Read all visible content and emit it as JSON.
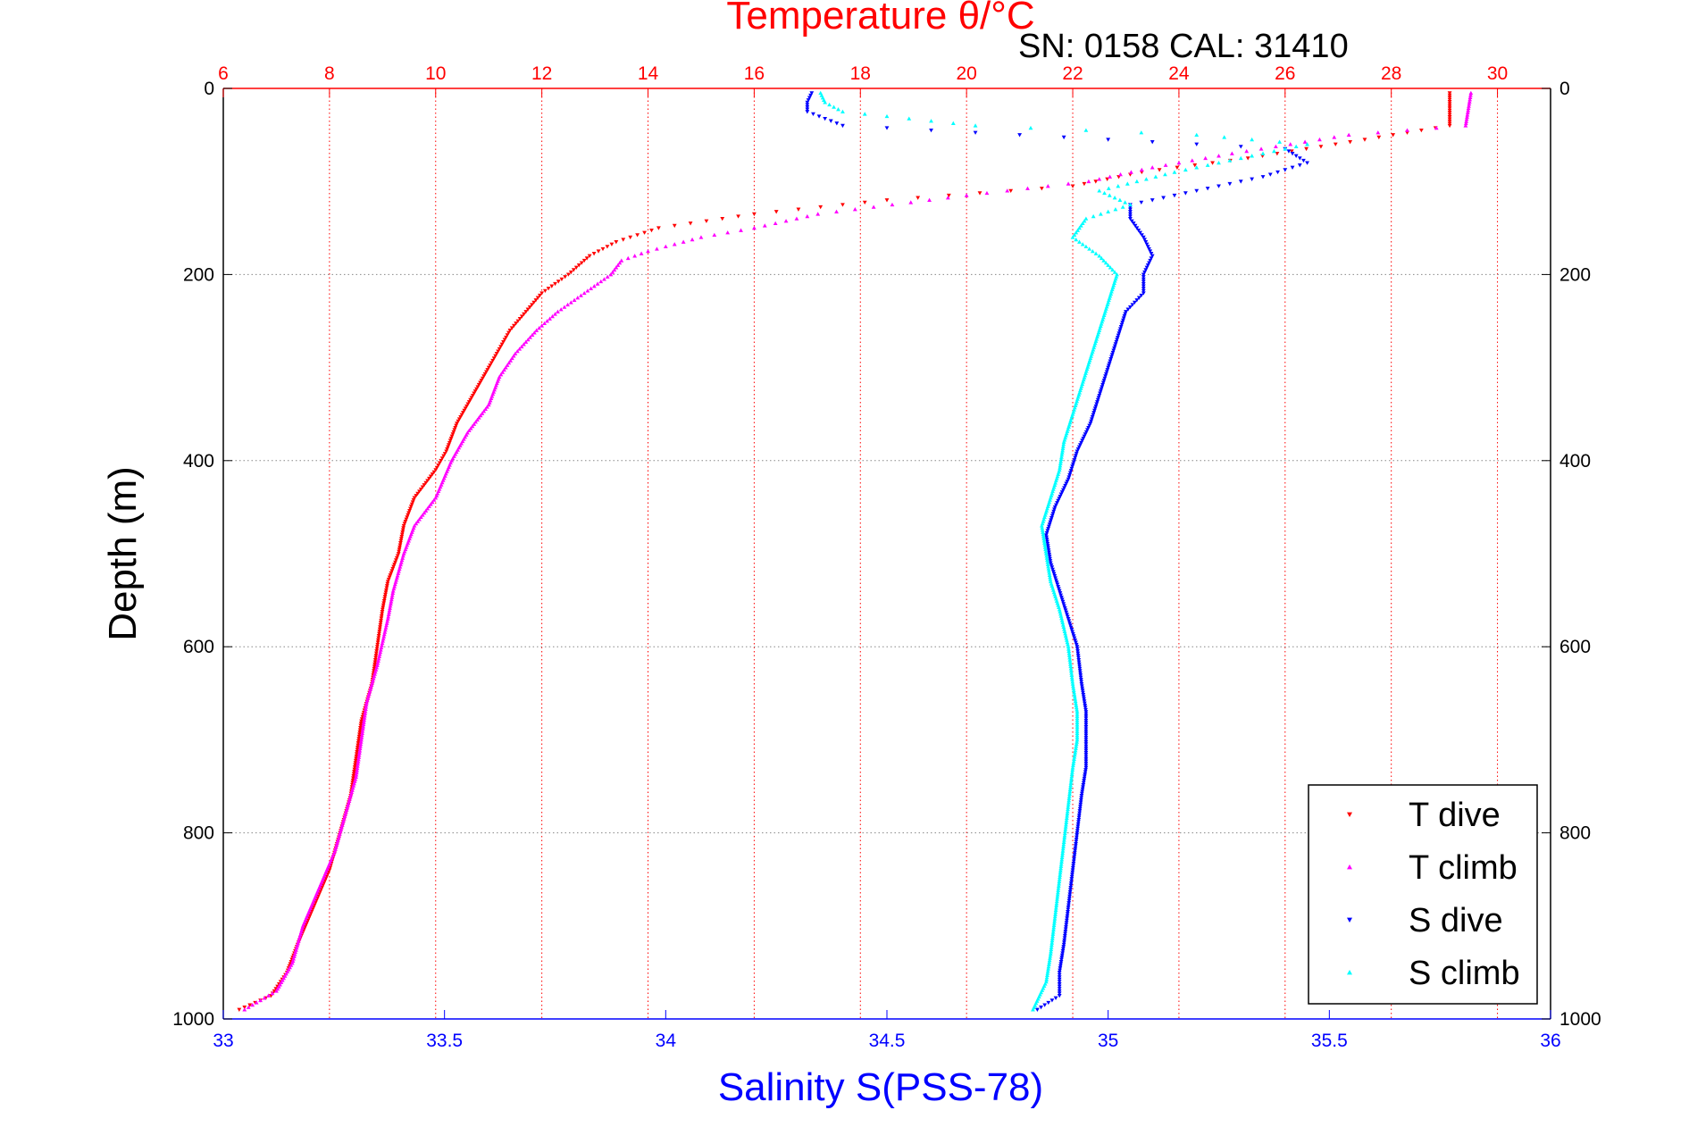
{
  "chart_data": {
    "type": "scatter",
    "title": "Temperature θ/°C",
    "annotation": "SN: 0158  CAL: 31410",
    "xlabel_top": "Temperature θ/°C",
    "xlabel": "Salinity S(PSS-78)",
    "ylabel": "Depth (m)",
    "x_top_range": [
      6,
      31
    ],
    "x_top_ticks": [
      "6",
      "8",
      "10",
      "12",
      "14",
      "16",
      "18",
      "20",
      "22",
      "24",
      "26",
      "28",
      "30"
    ],
    "x_bottom_range": [
      33,
      36
    ],
    "x_bottom_ticks": [
      "33",
      "33.5",
      "34",
      "34.5",
      "35",
      "35.5",
      "36"
    ],
    "y_range": [
      0,
      1000
    ],
    "y_reversed": true,
    "y_ticks": [
      "0",
      "200",
      "400",
      "600",
      "800",
      "1000"
    ],
    "grid": "top-axis vertical (red dotted) and depth horizontal (gray dotted)",
    "legend_position": "bottom-right",
    "colors": {
      "t_dive": "#ff0000",
      "t_climb": "#ff00ff",
      "s_dive": "#0000ff",
      "s_climb": "#00ffff",
      "temperature_axis": "#ff0000",
      "salinity_axis": "#0000ff",
      "depth_grid": "#888888"
    },
    "series": [
      {
        "name": "T dive",
        "axis": "temperature",
        "marker": "down-triangle",
        "points": [
          [
            29.1,
            5
          ],
          [
            29.1,
            40
          ],
          [
            27.5,
            55
          ],
          [
            25.3,
            75
          ],
          [
            23.3,
            90
          ],
          [
            22.0,
            105
          ],
          [
            18.5,
            120
          ],
          [
            16.0,
            135
          ],
          [
            14.2,
            150
          ],
          [
            13.4,
            165
          ],
          [
            12.9,
            180
          ],
          [
            12.5,
            200
          ],
          [
            12.0,
            220
          ],
          [
            11.7,
            240
          ],
          [
            11.4,
            260
          ],
          [
            11.2,
            280
          ],
          [
            11.0,
            300
          ],
          [
            10.7,
            330
          ],
          [
            10.4,
            360
          ],
          [
            10.2,
            390
          ],
          [
            10.0,
            410
          ],
          [
            9.6,
            440
          ],
          [
            9.4,
            470
          ],
          [
            9.3,
            500
          ],
          [
            9.1,
            530
          ],
          [
            9.0,
            560
          ],
          [
            8.9,
            600
          ],
          [
            8.8,
            640
          ],
          [
            8.6,
            680
          ],
          [
            8.5,
            720
          ],
          [
            8.4,
            760
          ],
          [
            8.2,
            800
          ],
          [
            8.0,
            840
          ],
          [
            7.7,
            880
          ],
          [
            7.4,
            920
          ],
          [
            7.2,
            950
          ],
          [
            6.9,
            975
          ],
          [
            6.3,
            990
          ]
        ]
      },
      {
        "name": "T climb",
        "axis": "temperature",
        "marker": "up-triangle",
        "points": [
          [
            29.5,
            5
          ],
          [
            29.4,
            40
          ],
          [
            27.2,
            50
          ],
          [
            25.0,
            70
          ],
          [
            23.5,
            85
          ],
          [
            22.3,
            100
          ],
          [
            20.0,
            115
          ],
          [
            17.2,
            135
          ],
          [
            16.0,
            150
          ],
          [
            15.0,
            160
          ],
          [
            14.0,
            175
          ],
          [
            13.5,
            185
          ],
          [
            13.3,
            200
          ],
          [
            12.8,
            220
          ],
          [
            12.3,
            240
          ],
          [
            11.9,
            260
          ],
          [
            11.5,
            285
          ],
          [
            11.2,
            310
          ],
          [
            11.0,
            340
          ],
          [
            10.6,
            370
          ],
          [
            10.3,
            400
          ],
          [
            10.0,
            440
          ],
          [
            9.6,
            470
          ],
          [
            9.4,
            500
          ],
          [
            9.2,
            540
          ],
          [
            9.1,
            570
          ],
          [
            8.9,
            620
          ],
          [
            8.7,
            660
          ],
          [
            8.6,
            700
          ],
          [
            8.5,
            740
          ],
          [
            8.3,
            780
          ],
          [
            8.1,
            820
          ],
          [
            7.8,
            860
          ],
          [
            7.5,
            900
          ],
          [
            7.3,
            940
          ],
          [
            7.0,
            970
          ],
          [
            6.4,
            990
          ]
        ]
      },
      {
        "name": "S dive",
        "axis": "salinity",
        "marker": "down-triangle",
        "points": [
          [
            34.33,
            5
          ],
          [
            34.32,
            15
          ],
          [
            34.32,
            25
          ],
          [
            34.4,
            40
          ],
          [
            35.0,
            55
          ],
          [
            35.4,
            65
          ],
          [
            35.45,
            80
          ],
          [
            35.35,
            95
          ],
          [
            35.2,
            110
          ],
          [
            35.05,
            125
          ],
          [
            35.05,
            140
          ],
          [
            35.08,
            160
          ],
          [
            35.1,
            180
          ],
          [
            35.08,
            200
          ],
          [
            35.08,
            220
          ],
          [
            35.04,
            240
          ],
          [
            35.02,
            270
          ],
          [
            35.0,
            300
          ],
          [
            34.98,
            330
          ],
          [
            34.96,
            360
          ],
          [
            34.93,
            390
          ],
          [
            34.91,
            420
          ],
          [
            34.88,
            450
          ],
          [
            34.86,
            480
          ],
          [
            34.87,
            510
          ],
          [
            34.89,
            540
          ],
          [
            34.91,
            570
          ],
          [
            34.93,
            600
          ],
          [
            34.94,
            640
          ],
          [
            34.95,
            670
          ],
          [
            34.95,
            700
          ],
          [
            34.95,
            730
          ],
          [
            34.94,
            760
          ],
          [
            34.93,
            800
          ],
          [
            34.92,
            840
          ],
          [
            34.91,
            880
          ],
          [
            34.9,
            920
          ],
          [
            34.89,
            950
          ],
          [
            34.89,
            975
          ],
          [
            34.84,
            990
          ]
        ]
      },
      {
        "name": "S climb",
        "axis": "salinity",
        "marker": "up-triangle",
        "points": [
          [
            34.35,
            5
          ],
          [
            34.36,
            15
          ],
          [
            34.4,
            25
          ],
          [
            34.7,
            40
          ],
          [
            35.2,
            50
          ],
          [
            35.45,
            60
          ],
          [
            35.3,
            75
          ],
          [
            35.15,
            90
          ],
          [
            34.98,
            110
          ],
          [
            35.05,
            125
          ],
          [
            34.95,
            140
          ],
          [
            34.92,
            160
          ],
          [
            34.98,
            180
          ],
          [
            35.02,
            200
          ],
          [
            35.0,
            230
          ],
          [
            34.98,
            260
          ],
          [
            34.96,
            290
          ],
          [
            34.94,
            320
          ],
          [
            34.92,
            350
          ],
          [
            34.9,
            380
          ],
          [
            34.89,
            410
          ],
          [
            34.87,
            440
          ],
          [
            34.85,
            470
          ],
          [
            34.86,
            500
          ],
          [
            34.87,
            530
          ],
          [
            34.89,
            560
          ],
          [
            34.91,
            600
          ],
          [
            34.92,
            640
          ],
          [
            34.93,
            670
          ],
          [
            34.93,
            700
          ],
          [
            34.92,
            730
          ],
          [
            34.91,
            770
          ],
          [
            34.9,
            810
          ],
          [
            34.89,
            850
          ],
          [
            34.88,
            890
          ],
          [
            34.87,
            930
          ],
          [
            34.86,
            960
          ],
          [
            34.83,
            990
          ]
        ]
      }
    ]
  }
}
